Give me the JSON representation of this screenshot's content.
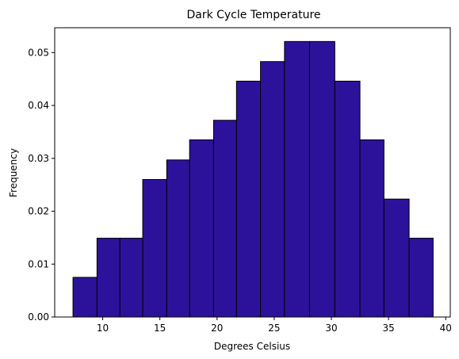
{
  "chart_data": {
    "type": "bar",
    "title": "Dark Cycle Temperature",
    "xlabel": "Degrees Celsius",
    "ylabel": "Frequency",
    "bar_color": "#2c129b",
    "edge_color": "#000000",
    "xlim": [
      5.8,
      40.4
    ],
    "ylim": [
      0,
      0.0547
    ],
    "bins": [
      {
        "x0": 7.4,
        "x1": 9.5,
        "value": 0.0075
      },
      {
        "x0": 9.5,
        "x1": 11.5,
        "value": 0.0149
      },
      {
        "x0": 11.5,
        "x1": 13.5,
        "value": 0.0149
      },
      {
        "x0": 13.5,
        "x1": 15.6,
        "value": 0.026
      },
      {
        "x0": 15.6,
        "x1": 17.6,
        "value": 0.0297
      },
      {
        "x0": 17.6,
        "x1": 19.7,
        "value": 0.0335
      },
      {
        "x0": 19.7,
        "x1": 21.7,
        "value": 0.0372
      },
      {
        "x0": 21.7,
        "x1": 23.8,
        "value": 0.0446
      },
      {
        "x0": 23.8,
        "x1": 25.9,
        "value": 0.0483
      },
      {
        "x0": 25.9,
        "x1": 28.1,
        "value": 0.0521
      },
      {
        "x0": 28.1,
        "x1": 30.3,
        "value": 0.0521
      },
      {
        "x0": 30.3,
        "x1": 32.5,
        "value": 0.0446
      },
      {
        "x0": 32.5,
        "x1": 34.6,
        "value": 0.0335
      },
      {
        "x0": 34.6,
        "x1": 36.8,
        "value": 0.0223
      },
      {
        "x0": 36.8,
        "x1": 38.9,
        "value": 0.0149
      }
    ],
    "xticks": [
      10,
      15,
      20,
      25,
      30,
      35,
      40
    ],
    "xtick_labels": [
      "10",
      "15",
      "20",
      "25",
      "30",
      "35",
      "40"
    ],
    "yticks": [
      0,
      0.01,
      0.02,
      0.03,
      0.04,
      0.05
    ],
    "ytick_labels": [
      "0.00",
      "0.01",
      "0.02",
      "0.03",
      "0.04",
      "0.05"
    ],
    "grid": false,
    "legend": false
  }
}
